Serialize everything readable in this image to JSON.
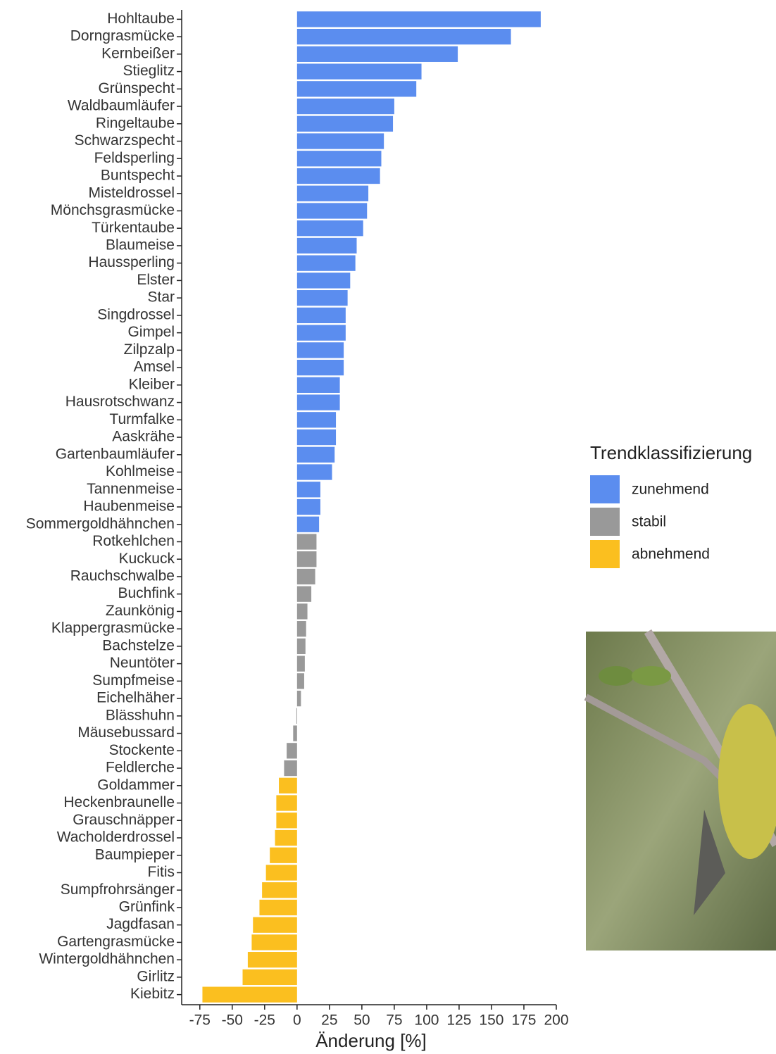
{
  "chart_data": {
    "type": "barh",
    "x_label": "Änderung [%]",
    "legend_title": "Trendklassifizierung",
    "categories": [
      "Hohltaube",
      "Dorngrasmücke",
      "Kernbeißer",
      "Stieglitz",
      "Grünspecht",
      "Waldbaumläufer",
      "Ringeltaube",
      "Schwarzspecht",
      "Feldsperling",
      "Buntspecht",
      "Misteldrossel",
      "Mönchsgrasmücke",
      "Türkentaube",
      "Blaumeise",
      "Haussperling",
      "Elster",
      "Star",
      "Singdrossel",
      "Gimpel",
      "Zilpzalp",
      "Amsel",
      "Kleiber",
      "Hausrotschwanz",
      "Turmfalke",
      "Aaskrähe",
      "Gartenbaumläufer",
      "Kohlmeise",
      "Tannenmeise",
      "Haubenmeise",
      "Sommergoldhähnchen",
      "Rotkehlchen",
      "Kuckuck",
      "Rauchschwalbe",
      "Buchfink",
      "Zaunkönig",
      "Klappergrasmücke",
      "Bachstelze",
      "Neuntöter",
      "Sumpfmeise",
      "Eichelhäher",
      "Blässhuhn",
      "Mäusebussard",
      "Stockente",
      "Feldlerche",
      "Goldammer",
      "Heckenbraunelle",
      "Grauschnäpper",
      "Wacholderdrossel",
      "Baumpieper",
      "Fitis",
      "Sumpfrohrsänger",
      "Grünfink",
      "Jagdfasan",
      "Gartengrasmücke",
      "Wintergoldhähnchen",
      "Girlitz",
      "Kiebitz"
    ],
    "series": [
      {
        "name": "zunehmend",
        "color": "#5b8def",
        "values": [
          188,
          165,
          124,
          96,
          92,
          75,
          74,
          67,
          65,
          64,
          55,
          54,
          51,
          46,
          45,
          41,
          39,
          37.5,
          37.5,
          36,
          36,
          33,
          33,
          30,
          30,
          29,
          27,
          18,
          18,
          17,
          null,
          null,
          null,
          null,
          null,
          null,
          null,
          null,
          null,
          null,
          null,
          null,
          null,
          null,
          null,
          null,
          null,
          null,
          null,
          null,
          null,
          null,
          null,
          null,
          null,
          null,
          null
        ]
      },
      {
        "name": "stabil",
        "color": "#999999",
        "values": [
          null,
          null,
          null,
          null,
          null,
          null,
          null,
          null,
          null,
          null,
          null,
          null,
          null,
          null,
          null,
          null,
          null,
          null,
          null,
          null,
          null,
          null,
          null,
          null,
          null,
          null,
          null,
          null,
          null,
          null,
          15,
          15,
          14,
          11,
          8,
          7,
          6.5,
          6,
          5.5,
          3,
          -0.5,
          -3,
          -8,
          -10,
          null,
          null,
          null,
          null,
          null,
          null,
          null,
          null,
          null,
          null,
          null,
          null,
          null
        ]
      },
      {
        "name": "abnehmend",
        "color": "#fbbf1f",
        "values": [
          null,
          null,
          null,
          null,
          null,
          null,
          null,
          null,
          null,
          null,
          null,
          null,
          null,
          null,
          null,
          null,
          null,
          null,
          null,
          null,
          null,
          null,
          null,
          null,
          null,
          null,
          null,
          null,
          null,
          null,
          null,
          null,
          null,
          null,
          null,
          null,
          null,
          null,
          null,
          null,
          null,
          null,
          null,
          null,
          -14,
          -16,
          -16,
          -17,
          -21,
          -24,
          -27,
          -29,
          -34,
          -35,
          -38,
          -42,
          -73
        ]
      }
    ],
    "xlim": [
      -89,
      200
    ],
    "xticks": [
      -75,
      -50,
      -25,
      0,
      25,
      50,
      75,
      100,
      125,
      150,
      175,
      200
    ]
  }
}
